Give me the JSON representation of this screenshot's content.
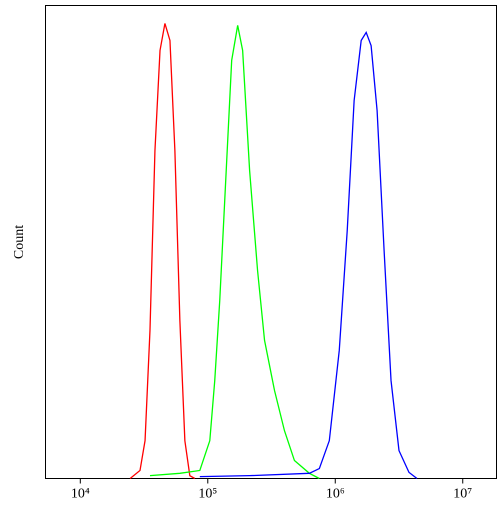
{
  "chart_data": {
    "type": "line",
    "y_label": "Count",
    "x_scale": "log",
    "xlim": [
      5333,
      18400000
    ],
    "xticks": [
      {
        "value": 10000,
        "label": "10⁴"
      },
      {
        "value": 100000,
        "label": "10⁵"
      },
      {
        "value": 1000000,
        "label": "10⁶"
      },
      {
        "value": 10000000,
        "label": "10⁷"
      }
    ],
    "ylim": [
      0,
      100
    ],
    "series": [
      {
        "color": "#ff0000",
        "x": [
          24600,
          29400,
          32200,
          35200,
          38500,
          42200,
          46100,
          50500,
          55200,
          60400,
          66100,
          72300,
          79100
        ],
        "values": [
          0,
          1.7,
          8.0,
          31.3,
          69.3,
          90.5,
          96.2,
          92.6,
          69.3,
          33.4,
          8.0,
          0.6,
          0
        ]
      },
      {
        "color": "#00ff00",
        "x": [
          35200,
          60400,
          86600,
          103700,
          113400,
          124100,
          135800,
          154000,
          171600,
          187700,
          212900,
          245700,
          278800,
          333800,
          399600,
          478400,
          626500,
          750000
        ],
        "values": [
          0.6,
          1.1,
          1.7,
          8.0,
          20.7,
          37.6,
          58.8,
          88.4,
          95.8,
          90.5,
          65.1,
          44.0,
          29.2,
          18.6,
          10.1,
          3.8,
          1.1,
          0
        ]
      },
      {
        "color": "#0000ff",
        "x": [
          86600,
          212900,
          626500,
          750000,
          898000,
          1075000,
          1241000,
          1406000,
          1597000,
          1748000,
          1911000,
          2129000,
          2416000,
          2738000,
          3162000,
          3787000,
          4374000
        ],
        "values": [
          0.4,
          0.6,
          1.1,
          2.1,
          8.0,
          27.1,
          52.4,
          79.9,
          92.6,
          94.3,
          91.5,
          77.8,
          48.2,
          20.7,
          5.9,
          1.3,
          0
        ]
      }
    ]
  }
}
